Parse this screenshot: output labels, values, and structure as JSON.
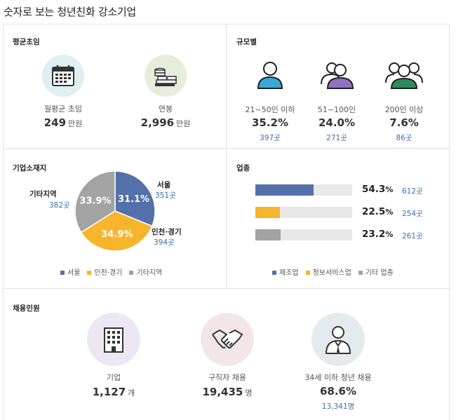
{
  "page_title": "숫자로 보는 청년친화 강소기업",
  "colors": {
    "blue": "#5470aa",
    "orange": "#f7b52c",
    "gray": "#a3a3a3",
    "link": "#3a6fb0"
  },
  "salary": {
    "title": "평균초임",
    "items": [
      {
        "icon": "calendar-icon",
        "label": "월평균 초임",
        "value": "249",
        "unit": "만원"
      },
      {
        "icon": "money-stack-icon",
        "label": "연봉",
        "value": "2,996",
        "unit": "만원"
      }
    ]
  },
  "size": {
    "title": "규모별",
    "items": [
      {
        "icon": "person-icon",
        "label": "21~50인 이하",
        "percent": "35.2%",
        "count": "397곳"
      },
      {
        "icon": "two-persons-icon",
        "label": "51~100인",
        "percent": "24.0%",
        "count": "271곳"
      },
      {
        "icon": "group-icon",
        "label": "200인 이상",
        "percent": "7.6%",
        "count": "86곳"
      }
    ]
  },
  "location": {
    "title": "기업소재지",
    "slices": [
      {
        "name": "서울",
        "value": 31.1,
        "label": "31.1%",
        "count": "351곳",
        "color": "#5470aa"
      },
      {
        "name": "인천·경기",
        "value": 34.9,
        "label": "34.9%",
        "count": "394곳",
        "color": "#f7b52c"
      },
      {
        "name": "기타지역",
        "value": 33.9,
        "label": "33.9%",
        "count": "382곳",
        "color": "#a3a3a3"
      }
    ],
    "legend": [
      "서울",
      "인천·경기",
      "기타지역"
    ]
  },
  "industry": {
    "title": "업종",
    "bars": [
      {
        "name": "제조업",
        "value": 54.3,
        "pct": "54.3",
        "count": "612곳",
        "color": "#5470aa"
      },
      {
        "name": "정보서비스업",
        "value": 22.5,
        "pct": "22.5",
        "count": "254곳",
        "color": "#f7b52c"
      },
      {
        "name": "기타 업종",
        "value": 23.2,
        "pct": "23.2",
        "count": "261곳",
        "color": "#a3a3a3"
      }
    ],
    "pct_sign": "%",
    "legend": [
      "제조업",
      "정보서비스업",
      "기타 업종"
    ]
  },
  "hiring": {
    "title": "채용인원",
    "items": [
      {
        "icon": "building-icon",
        "label": "기업",
        "value": "1,127",
        "unit": "개"
      },
      {
        "icon": "handshake-icon",
        "label": "구직자 채용",
        "value": "19,435",
        "unit": "명"
      },
      {
        "icon": "businessman-icon",
        "label": "34세 이하 청년 채용",
        "value": "68.6%",
        "unit": "",
        "count": "13,341명"
      }
    ]
  }
}
